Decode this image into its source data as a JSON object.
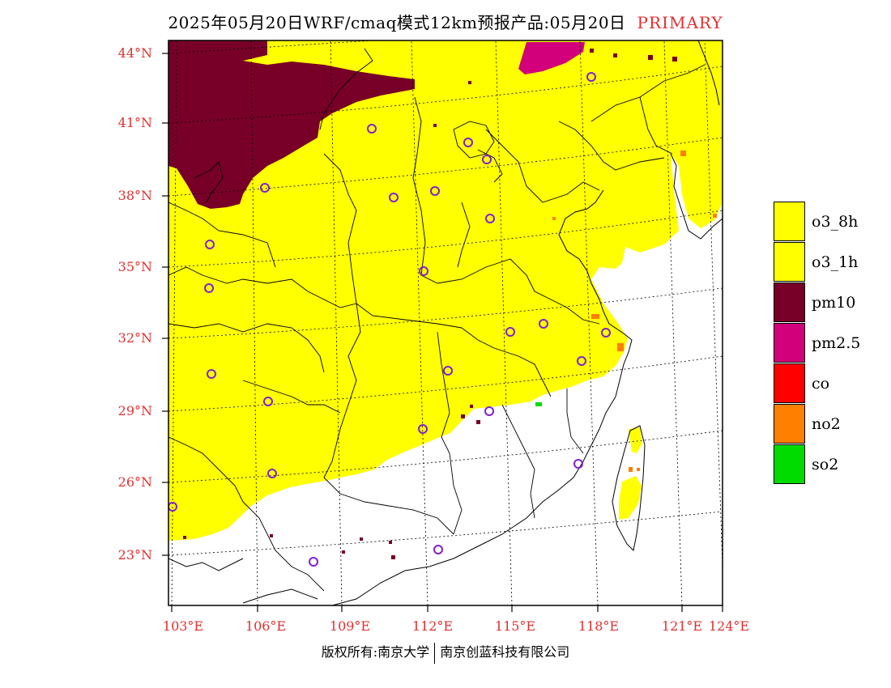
{
  "header": {
    "title": "2025年05月20日WRF/cmaq模式12km预报产品:05月20日",
    "tag": "PRIMARY",
    "tag_color": "#e03030"
  },
  "map": {
    "lat_labels": [
      "44°N",
      "41°N",
      "38°N",
      "35°N",
      "32°N",
      "29°N",
      "26°N",
      "23°N"
    ],
    "lon_labels": [
      "103°E",
      "106°E",
      "109°E",
      "112°E",
      "115°E",
      "118°E",
      "121°E",
      "124°E"
    ],
    "label_color": "#e03030",
    "colors": {
      "o3": "#ffff00",
      "pm10": "#780028",
      "pm25": "#d2007a",
      "co": "#ff0000",
      "no2": "#ff7f00",
      "so2": "#00dc00",
      "station": "#8020d0"
    }
  },
  "legend": {
    "items": [
      {
        "label": "o3_8h",
        "color": "#ffff00"
      },
      {
        "label": "o3_1h",
        "color": "#ffff00"
      },
      {
        "label": "pm10",
        "color": "#780028"
      },
      {
        "label": "pm2.5",
        "color": "#d2007a"
      },
      {
        "label": "co",
        "color": "#ff0000"
      },
      {
        "label": "no2",
        "color": "#ff7f00"
      },
      {
        "label": "so2",
        "color": "#00dc00"
      }
    ]
  },
  "footer": {
    "left": "版权所有:南京大学",
    "right": "南京创蓝科技有限公司"
  }
}
